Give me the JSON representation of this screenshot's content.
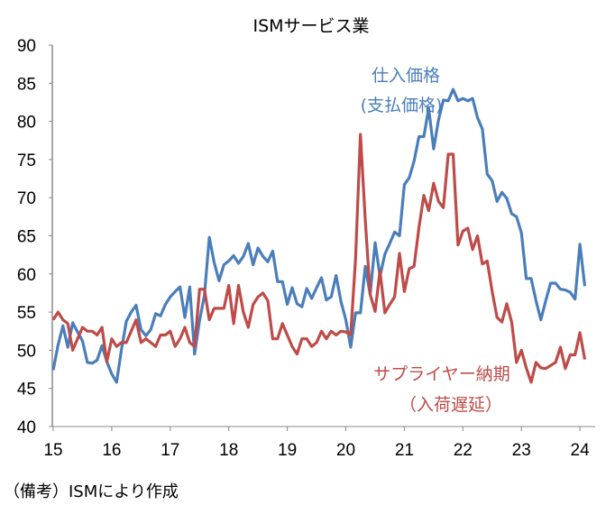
{
  "chart_data": {
    "type": "line",
    "title": "ISMサービス業",
    "xlabel": "",
    "ylabel": "",
    "ylim": [
      40,
      90
    ],
    "yticks": [
      40,
      45,
      50,
      55,
      60,
      65,
      70,
      75,
      80,
      85,
      90
    ],
    "xticks": [
      "15",
      "16",
      "17",
      "18",
      "19",
      "20",
      "21",
      "22",
      "23",
      "24"
    ],
    "x_start": "2015-01",
    "frequency": "monthly",
    "grid": false,
    "series": [
      {
        "name": "仕入価格",
        "name2": "(支払価格)",
        "color": "#4a7ebb",
        "values": [
          47.4,
          50.7,
          53.2,
          50.4,
          53.6,
          52.4,
          51.2,
          48.4,
          48.3,
          48.7,
          50.6,
          48.5,
          46.9,
          45.8,
          50.1,
          53.8,
          55.0,
          55.9,
          52.7,
          51.9,
          52.7,
          54.8,
          54.5,
          56.0,
          57.0,
          57.7,
          58.3,
          54.3,
          58.3,
          49.5,
          53.9,
          57.2,
          64.8,
          61.5,
          59.1,
          61.2,
          61.7,
          62.4,
          61.4,
          62.3,
          64.0,
          61.2,
          63.4,
          62.3,
          61.6,
          63.0,
          59.0,
          59.0,
          56.0,
          58.2,
          56.1,
          55.7,
          58.1,
          56.8,
          58.2,
          59.5,
          56.6,
          57.0,
          59.8,
          56.4,
          54.0,
          50.4,
          54.9,
          54.9,
          61.0,
          57.3,
          64.1,
          59.7,
          62.6,
          64.0,
          65.5,
          65.0,
          71.7,
          72.6,
          74.8,
          78.0,
          78.0,
          81.7,
          76.4,
          80.2,
          82.8,
          82.7,
          84.2,
          82.7,
          83.0,
          82.7,
          83.0,
          80.5,
          79.0,
          73.1,
          72.2,
          69.5,
          70.7,
          69.9,
          67.9,
          67.5,
          65.4,
          59.4,
          59.4,
          56.5,
          54.0,
          56.5,
          58.8,
          58.8,
          58.0,
          57.9,
          57.6,
          56.7,
          63.9,
          58.4
        ]
      },
      {
        "name": "サプライヤー納期",
        "name2": "（入荷遅延）",
        "color": "#be4b48",
        "values": [
          54.0,
          55.0,
          54.0,
          53.5,
          50.0,
          51.5,
          53.0,
          52.5,
          52.5,
          52.0,
          53.0,
          48.5,
          51.5,
          50.5,
          51.0,
          51.0,
          52.5,
          54.0,
          51.0,
          51.5,
          51.0,
          50.5,
          52.0,
          52.0,
          52.5,
          50.5,
          51.5,
          53.0,
          51.0,
          50.5,
          58.0,
          58.0,
          54.0,
          55.5,
          55.5,
          55.5,
          58.5,
          53.5,
          58.5,
          55.0,
          53.0,
          56.0,
          57.0,
          57.5,
          56.5,
          51.5,
          51.5,
          53.5,
          52.0,
          50.5,
          49.5,
          51.5,
          51.5,
          50.5,
          51.0,
          52.5,
          51.5,
          52.5,
          52.0,
          52.5,
          52.4,
          52.0,
          62.0,
          78.3,
          67.0,
          57.3,
          55.1,
          60.4,
          54.9,
          56.0,
          57.0,
          62.7,
          57.7,
          60.7,
          61.0,
          66.1,
          70.3,
          68.3,
          71.9,
          69.5,
          68.7,
          75.7,
          75.7,
          63.8,
          65.6,
          66.0,
          63.2,
          65.0,
          61.3,
          61.7,
          57.7,
          54.3,
          53.7,
          56.1,
          53.7,
          48.4,
          50.0,
          47.7,
          45.8,
          48.4,
          47.7,
          47.6,
          48.0,
          48.4,
          50.4,
          47.6,
          49.4,
          49.4,
          52.3,
          48.8
        ]
      }
    ]
  },
  "footnote": "（備考）ISMにより作成"
}
